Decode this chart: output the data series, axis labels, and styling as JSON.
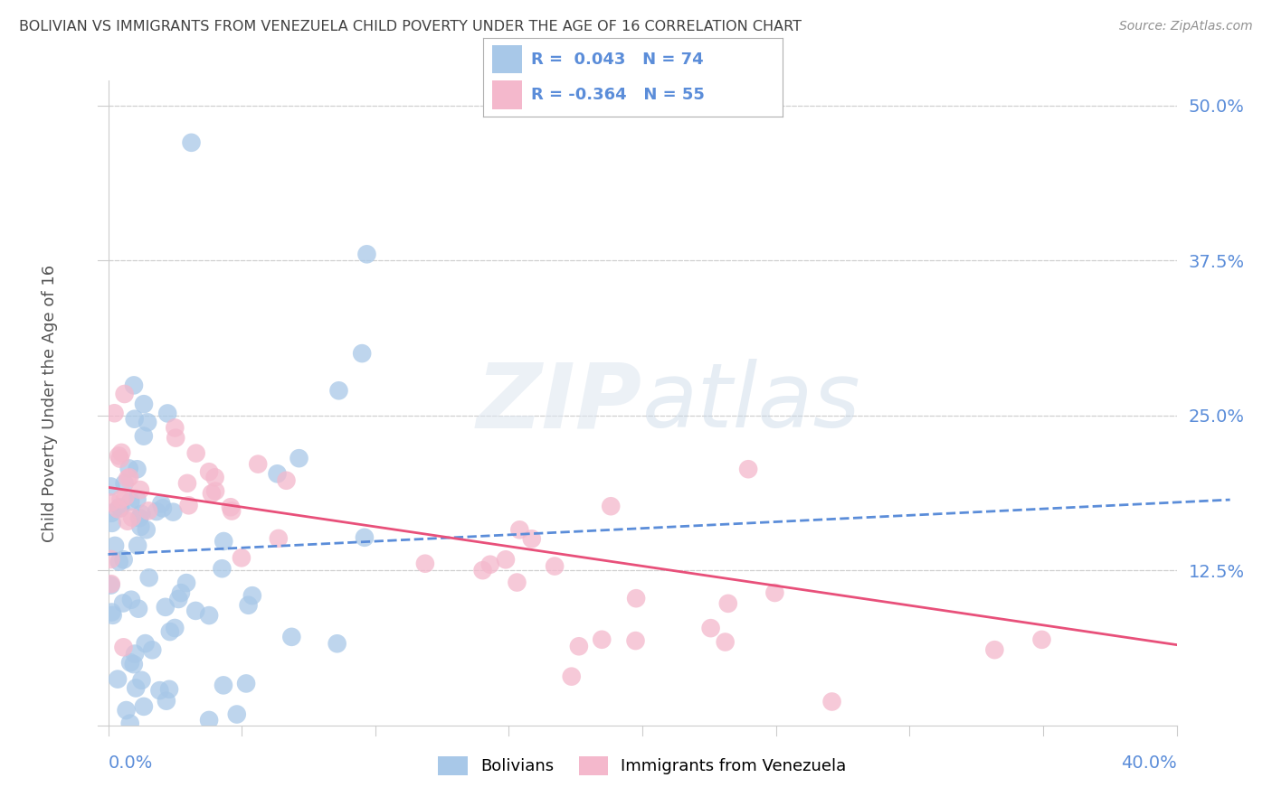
{
  "title": "BOLIVIAN VS IMMIGRANTS FROM VENEZUELA CHILD POVERTY UNDER THE AGE OF 16 CORRELATION CHART",
  "source": "Source: ZipAtlas.com",
  "ylabel": "Child Poverty Under the Age of 16",
  "right_yticklabels": [
    "12.5%",
    "25.0%",
    "37.5%",
    "50.0%"
  ],
  "right_ytick_vals": [
    0.125,
    0.25,
    0.375,
    0.5
  ],
  "legend_text_blue": "R =  0.043   N = 74",
  "legend_text_pink": "R = -0.364   N = 55",
  "blue_scatter_color": "#a8c8e8",
  "pink_scatter_color": "#f4b8cc",
  "blue_line_color": "#5b8dd9",
  "pink_line_color": "#e8507a",
  "background_color": "#ffffff",
  "grid_color": "#d0d0d0",
  "title_color": "#404040",
  "source_color": "#909090",
  "axis_label_color": "#5b8dd9",
  "xlim": [
    0.0,
    0.4
  ],
  "ylim": [
    0.0,
    0.52
  ],
  "blue_line_x": [
    0.0,
    0.42
  ],
  "blue_line_y": [
    0.138,
    0.182
  ],
  "pink_line_x": [
    0.0,
    0.4
  ],
  "pink_line_y": [
    0.192,
    0.065
  ]
}
